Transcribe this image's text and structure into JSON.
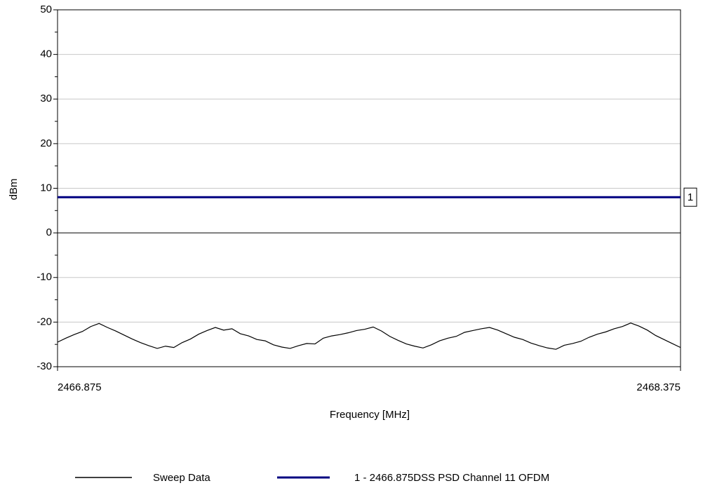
{
  "chart_data": {
    "type": "line",
    "x_label": "Frequency [MHz]",
    "y_label": "dBm",
    "xlim": [
      2466.875,
      2468.375
    ],
    "xticks": [
      2466.875,
      2468.375
    ],
    "ylim": [
      -30,
      50
    ],
    "yticks": [
      -30,
      -20,
      -10,
      0,
      10,
      20,
      30,
      40,
      50
    ],
    "yminorticks": [
      -25,
      -15,
      -5,
      5,
      15,
      25,
      35,
      45
    ],
    "grid": true,
    "x": [
      2466.875,
      2466.895,
      2466.915,
      2466.935,
      2466.955,
      2466.975,
      2466.995,
      2467.015,
      2467.035,
      2467.055,
      2467.075,
      2467.095,
      2467.115,
      2467.135,
      2467.155,
      2467.175,
      2467.195,
      2467.215,
      2467.235,
      2467.255,
      2467.275,
      2467.295,
      2467.315,
      2467.335,
      2467.355,
      2467.375,
      2467.395,
      2467.415,
      2467.435,
      2467.455,
      2467.475,
      2467.495,
      2467.515,
      2467.535,
      2467.555,
      2467.575,
      2467.595,
      2467.615,
      2467.635,
      2467.655,
      2467.675,
      2467.695,
      2467.715,
      2467.735,
      2467.755,
      2467.775,
      2467.795,
      2467.815,
      2467.835,
      2467.855,
      2467.875,
      2467.895,
      2467.915,
      2467.935,
      2467.955,
      2467.975,
      2467.995,
      2468.015,
      2468.035,
      2468.055,
      2468.075,
      2468.095,
      2468.115,
      2468.135,
      2468.155,
      2468.175,
      2468.195,
      2468.215,
      2468.235,
      2468.255,
      2468.275,
      2468.295,
      2468.315,
      2468.335,
      2468.355,
      2468.375
    ],
    "series": [
      {
        "name": "Sweep Data",
        "color": "#000000",
        "values": [
          -24.5,
          -23.6,
          -22.8,
          -22.1,
          -21.0,
          -20.3,
          -21.2,
          -22.0,
          -22.9,
          -23.8,
          -24.6,
          -25.3,
          -25.9,
          -25.4,
          -25.7,
          -24.6,
          -23.8,
          -22.7,
          -21.9,
          -21.2,
          -21.8,
          -21.5,
          -22.6,
          -23.1,
          -23.9,
          -24.2,
          -25.1,
          -25.6,
          -25.9,
          -25.3,
          -24.8,
          -24.9,
          -23.6,
          -23.1,
          -22.8,
          -22.4,
          -21.9,
          -21.6,
          -21.1,
          -22.0,
          -23.2,
          -24.1,
          -24.9,
          -25.4,
          -25.8,
          -25.1,
          -24.2,
          -23.6,
          -23.2,
          -22.3,
          -21.9,
          -21.5,
          -21.2,
          -21.8,
          -22.6,
          -23.4,
          -23.9,
          -24.7,
          -25.3,
          -25.8,
          -26.1,
          -25.2,
          -24.8,
          -24.3,
          -23.4,
          -22.7,
          -22.2,
          -21.5,
          -21.0,
          -20.2,
          -20.9,
          -21.8,
          -23.0,
          -23.9,
          -24.8,
          -25.7
        ]
      }
    ],
    "limit_lines": [
      {
        "name": "1 - 2466.875DSS PSD Channel 11 OFDM",
        "label": "1",
        "value": 8,
        "color": "#000080"
      }
    ]
  }
}
